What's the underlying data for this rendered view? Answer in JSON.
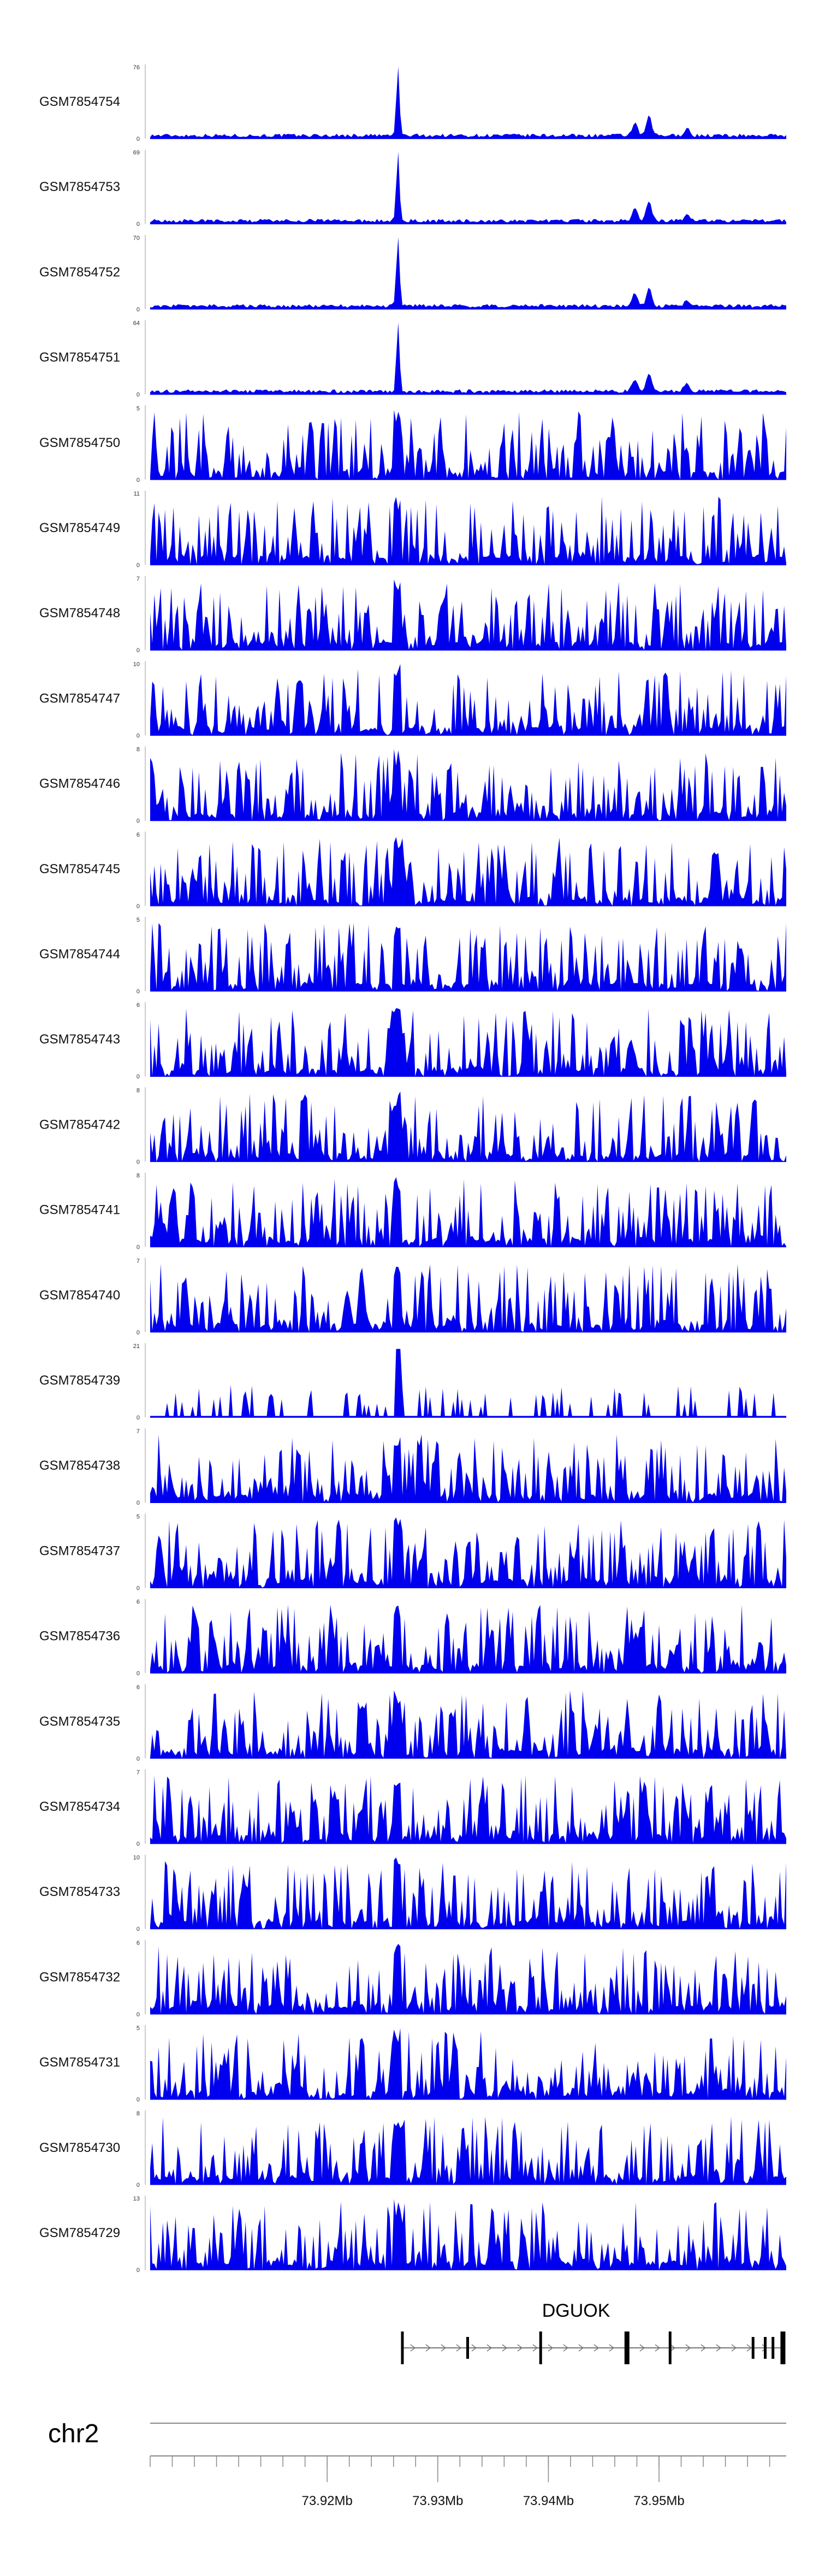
{
  "chart_data": {
    "type": "area",
    "title": "",
    "description_type": "genome browser coverage tracks",
    "colors": {
      "signal": "#0000EE",
      "axis": "#888888",
      "gene": "#000000"
    },
    "x_range_mb": [
      73.904,
      73.9615
    ],
    "tracks": [
      {
        "name": "GSM7854754",
        "ymax": "76",
        "ymin": "0",
        "kind": "peaky"
      },
      {
        "name": "GSM7854753",
        "ymax": "69",
        "ymin": "0",
        "kind": "peaky"
      },
      {
        "name": "GSM7854752",
        "ymax": "70",
        "ymin": "0",
        "kind": "peaky"
      },
      {
        "name": "GSM7854751",
        "ymax": "64",
        "ymin": "0",
        "kind": "peaky"
      },
      {
        "name": "GSM7854750",
        "ymax": "5",
        "ymin": "0",
        "kind": "noisy"
      },
      {
        "name": "GSM7854749",
        "ymax": "11",
        "ymin": "0",
        "kind": "noisy"
      },
      {
        "name": "GSM7854748",
        "ymax": "7",
        "ymin": "0",
        "kind": "noisy"
      },
      {
        "name": "GSM7854747",
        "ymax": "10",
        "ymin": "0",
        "kind": "noisy"
      },
      {
        "name": "GSM7854746",
        "ymax": "8",
        "ymin": "0",
        "kind": "noisy"
      },
      {
        "name": "GSM7854745",
        "ymax": "6",
        "ymin": "0",
        "kind": "noisy"
      },
      {
        "name": "GSM7854744",
        "ymax": "5",
        "ymin": "0",
        "kind": "noisy"
      },
      {
        "name": "GSM7854743",
        "ymax": "6",
        "ymin": "0",
        "kind": "noisy"
      },
      {
        "name": "GSM7854742",
        "ymax": "8",
        "ymin": "0",
        "kind": "noisy"
      },
      {
        "name": "GSM7854741",
        "ymax": "8",
        "ymin": "0",
        "kind": "noisy"
      },
      {
        "name": "GSM7854740",
        "ymax": "7",
        "ymin": "0",
        "kind": "noisy"
      },
      {
        "name": "GSM7854739",
        "ymax": "21",
        "ymin": "0",
        "kind": "sparse"
      },
      {
        "name": "GSM7854738",
        "ymax": "7",
        "ymin": "0",
        "kind": "noisy"
      },
      {
        "name": "GSM7854737",
        "ymax": "5",
        "ymin": "0",
        "kind": "noisy"
      },
      {
        "name": "GSM7854736",
        "ymax": "6",
        "ymin": "0",
        "kind": "noisy"
      },
      {
        "name": "GSM7854735",
        "ymax": "6",
        "ymin": "0",
        "kind": "noisy"
      },
      {
        "name": "GSM7854734",
        "ymax": "7",
        "ymin": "0",
        "kind": "noisy"
      },
      {
        "name": "GSM7854733",
        "ymax": "10",
        "ymin": "0",
        "kind": "noisy"
      },
      {
        "name": "GSM7854732",
        "ymax": "6",
        "ymin": "0",
        "kind": "noisy"
      },
      {
        "name": "GSM7854731",
        "ymax": "5",
        "ymin": "0",
        "kind": "noisy"
      },
      {
        "name": "GSM7854730",
        "ymax": "8",
        "ymin": "0",
        "kind": "noisy"
      },
      {
        "name": "GSM7854729",
        "ymax": "13",
        "ymin": "0",
        "kind": "noisy"
      }
    ],
    "peak_positions_mb": [
      73.9264,
      73.9478,
      73.9491,
      73.9525
    ],
    "peak_heights_fraction": [
      1.0,
      0.17,
      0.26,
      0.1
    ],
    "gene": {
      "name": "DGUOK",
      "strand": "+",
      "start_mb": 73.9268,
      "end_mb": 73.9613,
      "exons_mb": [
        73.9268,
        73.9327,
        73.9393,
        73.9471,
        73.951,
        73.9585,
        73.9596,
        73.9603,
        73.9612
      ]
    },
    "chromosome": "chr2",
    "ticks": [
      {
        "value_mb": 73.92,
        "label": "73.92Mb"
      },
      {
        "value_mb": 73.93,
        "label": "73.93Mb"
      },
      {
        "value_mb": 73.94,
        "label": "73.94Mb"
      },
      {
        "value_mb": 73.95,
        "label": "73.95Mb"
      }
    ],
    "minor_tick_step_mb": 0.002
  }
}
